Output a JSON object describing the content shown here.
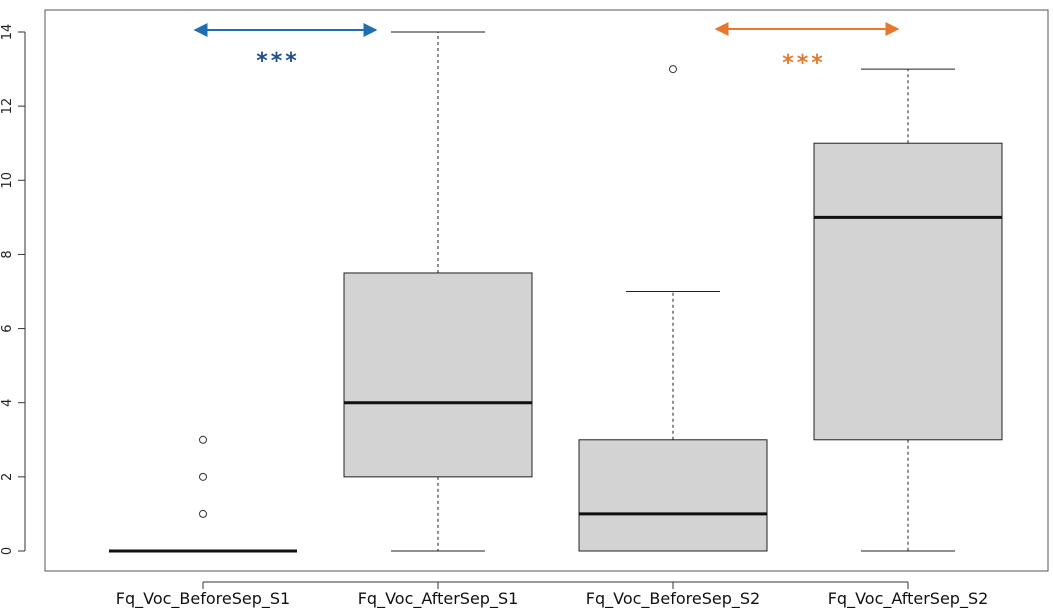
{
  "chart_data": {
    "type": "boxplot",
    "title": "",
    "xlabel": "",
    "ylabel": "",
    "ylim": [
      0,
      14
    ],
    "yticks": [
      0,
      2,
      4,
      6,
      8,
      10,
      12,
      14
    ],
    "ytick_labels": [
      "0",
      "2",
      "4",
      "6",
      "8",
      "10",
      "12",
      "14"
    ],
    "grid": false,
    "box_fill_color": "#d3d3d3",
    "categories": [
      "Fq_Voc_BeforeSep_S1",
      "Fq_Voc_AfterSep_S1",
      "Fq_Voc_BeforeSep_S2",
      "Fq_Voc_AfterSep_S2"
    ],
    "boxes": [
      {
        "name": "Fq_Voc_BeforeSep_S1",
        "whisker_low": 0,
        "q1": 0,
        "median": 0,
        "q3": 0,
        "whisker_high": 0,
        "outliers": [
          1,
          2,
          3
        ]
      },
      {
        "name": "Fq_Voc_AfterSep_S1",
        "whisker_low": 0,
        "q1": 2,
        "median": 4,
        "q3": 7.5,
        "whisker_high": 14,
        "outliers": []
      },
      {
        "name": "Fq_Voc_BeforeSep_S2",
        "whisker_low": 0,
        "q1": 0,
        "median": 1,
        "q3": 3,
        "whisker_high": 7,
        "outliers": [
          13
        ]
      },
      {
        "name": "Fq_Voc_AfterSep_S2",
        "whisker_low": 0,
        "q1": 3,
        "median": 9,
        "q3": 11,
        "whisker_high": 13,
        "outliers": []
      }
    ],
    "annotations": [
      {
        "label": "***",
        "from": "Fq_Voc_BeforeSep_S1",
        "to": "Fq_Voc_AfterSep_S1",
        "color": "#1f6fb0",
        "text_color": "#1f4e8c"
      },
      {
        "label": "***",
        "from": "Fq_Voc_BeforeSep_S2",
        "to": "Fq_Voc_AfterSep_S2",
        "color": "#e8772e",
        "text_color": "#e8772e"
      }
    ]
  }
}
